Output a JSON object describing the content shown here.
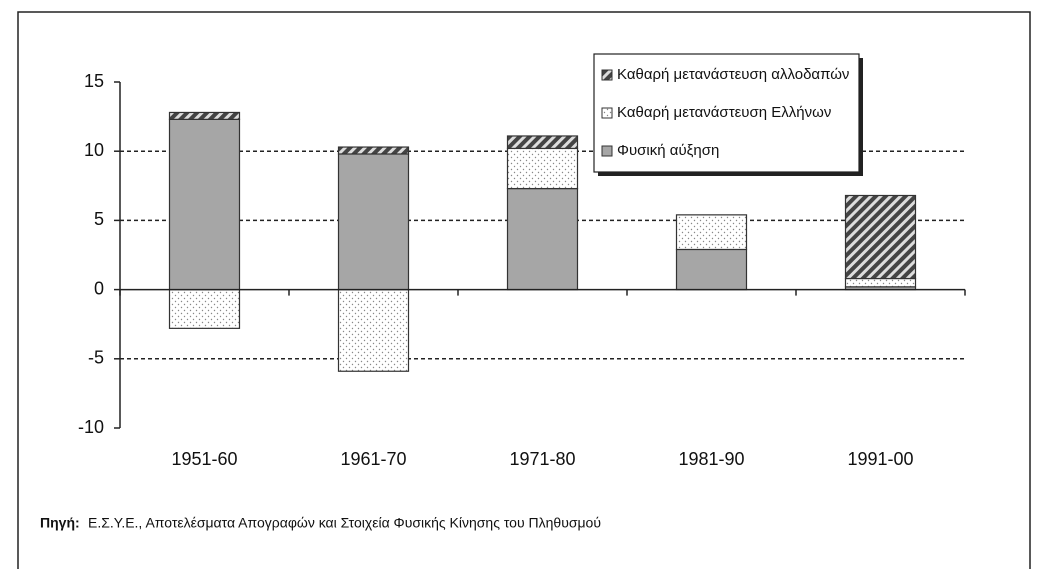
{
  "chart_data": {
    "type": "stacked_bar",
    "categories": [
      "1951-60",
      "1961-70",
      "1971-80",
      "1981-90",
      "1991-00"
    ],
    "series": [
      {
        "name": "Φυσική αύξηση",
        "color": "#a6a6a6",
        "pattern": "solid",
        "values": [
          12.3,
          9.8,
          7.3,
          2.9,
          0.2
        ]
      },
      {
        "name": "Καθαρή μετανάστευση Ελλήνων",
        "color": "#ffffff",
        "pattern": "dots",
        "values": [
          -2.8,
          -5.9,
          2.9,
          2.5,
          0.6
        ]
      },
      {
        "name": "Καθαρή μετανάστευση αλλοδαπών",
        "color": "#555555",
        "pattern": "hatch",
        "values": [
          0.5,
          0.5,
          0.9,
          0,
          6.0
        ]
      }
    ],
    "ylim": [
      -10,
      15
    ],
    "yticks": [
      -10,
      -5,
      0,
      5,
      10,
      15
    ],
    "grid": true,
    "legend": "top-right",
    "source_label": "Πηγή:",
    "source": "Ε.Σ.Υ.Ε., Αποτελέσματα Απογραφών και Στοιχεία Φυσικής Κίνησης του Πληθυσμού"
  }
}
